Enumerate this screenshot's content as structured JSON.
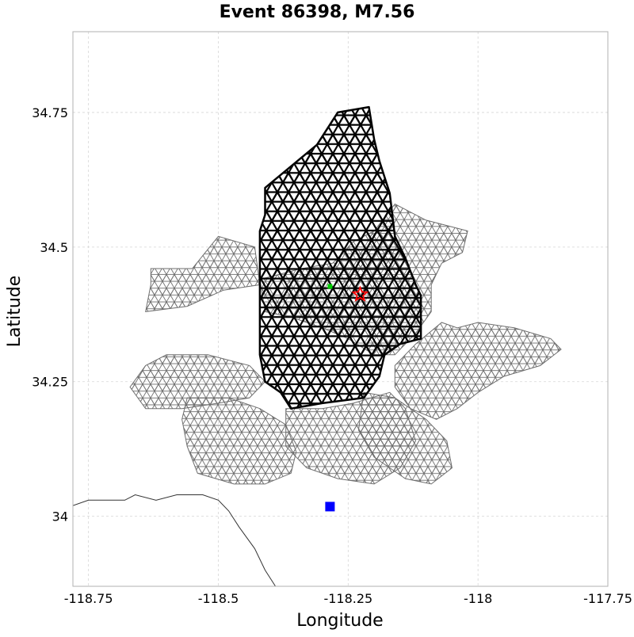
{
  "chart_data": {
    "type": "scatter",
    "title": "Event 86398, M7.56",
    "xlabel": "Longitude",
    "ylabel": "Latitude",
    "xlim": [
      -118.78,
      -117.75
    ],
    "ylim": [
      33.87,
      34.9
    ],
    "x_ticks": [
      -118.75,
      -118.5,
      -118.25,
      -118.0,
      -117.75
    ],
    "x_tick_labels": [
      "-118.75",
      "-118.5",
      "-118.25",
      "-118",
      "-117.75"
    ],
    "y_ticks": [
      34.0,
      34.25,
      34.5,
      34.75
    ],
    "y_tick_labels": [
      "34",
      "34.25",
      "34.5",
      "34.75"
    ],
    "grid": true,
    "colors": {
      "fault_mesh": "#6e6e6e",
      "rupture": "#000000",
      "epicenter": "#ff0000",
      "centroid": "#00cc00",
      "station": "#0000ff",
      "coastline": "#333333"
    },
    "fault_mesh_regions": [
      [
        [
          -118.63,
          34.46
        ],
        [
          -118.55,
          34.46
        ],
        [
          -118.5,
          34.52
        ],
        [
          -118.43,
          34.5
        ],
        [
          -118.42,
          34.43
        ],
        [
          -118.49,
          34.42
        ],
        [
          -118.56,
          34.39
        ],
        [
          -118.64,
          34.38
        ],
        [
          -118.63,
          34.43
        ]
      ],
      [
        [
          -118.42,
          34.44
        ],
        [
          -118.34,
          34.46
        ],
        [
          -118.28,
          34.47
        ],
        [
          -118.24,
          34.51
        ],
        [
          -118.2,
          34.53
        ],
        [
          -118.16,
          34.58
        ],
        [
          -118.1,
          34.55
        ],
        [
          -118.02,
          34.53
        ],
        [
          -118.03,
          34.49
        ],
        [
          -118.07,
          34.47
        ],
        [
          -118.09,
          34.43
        ],
        [
          -118.09,
          34.38
        ],
        [
          -118.12,
          34.34
        ],
        [
          -118.16,
          34.3
        ],
        [
          -118.2,
          34.3
        ],
        [
          -118.25,
          34.33
        ],
        [
          -118.3,
          34.35
        ],
        [
          -118.36,
          34.37
        ],
        [
          -118.41,
          34.38
        ]
      ],
      [
        [
          -118.6,
          34.3
        ],
        [
          -118.52,
          34.3
        ],
        [
          -118.44,
          34.28
        ],
        [
          -118.41,
          34.25
        ],
        [
          -118.44,
          34.22
        ],
        [
          -118.5,
          34.21
        ],
        [
          -118.57,
          34.2
        ],
        [
          -118.64,
          34.2
        ],
        [
          -118.67,
          34.24
        ],
        [
          -118.64,
          34.28
        ]
      ],
      [
        [
          -118.56,
          34.22
        ],
        [
          -118.48,
          34.22
        ],
        [
          -118.42,
          34.2
        ],
        [
          -118.37,
          34.17
        ],
        [
          -118.35,
          34.12
        ],
        [
          -118.36,
          34.08
        ],
        [
          -118.41,
          34.06
        ],
        [
          -118.47,
          34.06
        ],
        [
          -118.54,
          34.08
        ],
        [
          -118.56,
          34.13
        ],
        [
          -118.57,
          34.18
        ]
      ],
      [
        [
          -118.37,
          34.2
        ],
        [
          -118.3,
          34.2
        ],
        [
          -118.24,
          34.21
        ],
        [
          -118.17,
          34.23
        ],
        [
          -118.14,
          34.2
        ],
        [
          -118.12,
          34.14
        ],
        [
          -118.15,
          34.09
        ],
        [
          -118.2,
          34.06
        ],
        [
          -118.27,
          34.07
        ],
        [
          -118.33,
          34.09
        ],
        [
          -118.37,
          34.13
        ]
      ],
      [
        [
          -118.16,
          34.28
        ],
        [
          -118.12,
          34.32
        ],
        [
          -118.07,
          34.36
        ],
        [
          -118.04,
          34.35
        ],
        [
          -118.0,
          34.36
        ],
        [
          -117.93,
          34.35
        ],
        [
          -117.86,
          34.33
        ],
        [
          -117.84,
          34.31
        ],
        [
          -117.88,
          34.28
        ],
        [
          -117.95,
          34.26
        ],
        [
          -118.0,
          34.23
        ],
        [
          -118.04,
          34.2
        ],
        [
          -118.08,
          34.18
        ],
        [
          -118.13,
          34.2
        ],
        [
          -118.16,
          34.24
        ]
      ],
      [
        [
          -118.22,
          34.23
        ],
        [
          -118.16,
          34.22
        ],
        [
          -118.1,
          34.18
        ],
        [
          -118.06,
          34.14
        ],
        [
          -118.05,
          34.09
        ],
        [
          -118.09,
          34.06
        ],
        [
          -118.14,
          34.07
        ],
        [
          -118.2,
          34.11
        ],
        [
          -118.23,
          34.16
        ]
      ]
    ],
    "rupture_outline": [
      [
        -118.41,
        34.61
      ],
      [
        -118.36,
        34.65
      ],
      [
        -118.31,
        34.69
      ],
      [
        -118.27,
        34.75
      ],
      [
        -118.21,
        34.76
      ],
      [
        -118.2,
        34.7
      ],
      [
        -118.19,
        34.66
      ],
      [
        -118.17,
        34.6
      ],
      [
        -118.16,
        34.52
      ],
      [
        -118.14,
        34.48
      ],
      [
        -118.12,
        34.43
      ],
      [
        -118.11,
        34.41
      ],
      [
        -118.11,
        34.33
      ],
      [
        -118.15,
        34.32
      ],
      [
        -118.18,
        34.3
      ],
      [
        -118.19,
        34.26
      ],
      [
        -118.22,
        34.22
      ],
      [
        -118.3,
        34.21
      ],
      [
        -118.36,
        34.2
      ],
      [
        -118.38,
        34.23
      ],
      [
        -118.41,
        34.25
      ],
      [
        -118.42,
        34.3
      ],
      [
        -118.42,
        34.38
      ],
      [
        -118.42,
        34.46
      ],
      [
        -118.42,
        34.53
      ],
      [
        -118.41,
        34.56
      ]
    ],
    "epicenter": {
      "lon": -118.227,
      "lat": 34.412
    },
    "centroid": {
      "lon": -118.285,
      "lat": 34.427
    },
    "station": {
      "lon": -118.285,
      "lat": 34.018
    },
    "coastline": [
      [
        -118.78,
        34.02
      ],
      [
        -118.75,
        34.03
      ],
      [
        -118.72,
        34.03
      ],
      [
        -118.68,
        34.03
      ],
      [
        -118.66,
        34.04
      ],
      [
        -118.62,
        34.03
      ],
      [
        -118.58,
        34.04
      ],
      [
        -118.56,
        34.04
      ],
      [
        -118.53,
        34.04
      ],
      [
        -118.5,
        34.03
      ],
      [
        -118.48,
        34.01
      ],
      [
        -118.46,
        33.98
      ],
      [
        -118.43,
        33.94
      ],
      [
        -118.41,
        33.9
      ],
      [
        -118.39,
        33.87
      ]
    ]
  }
}
